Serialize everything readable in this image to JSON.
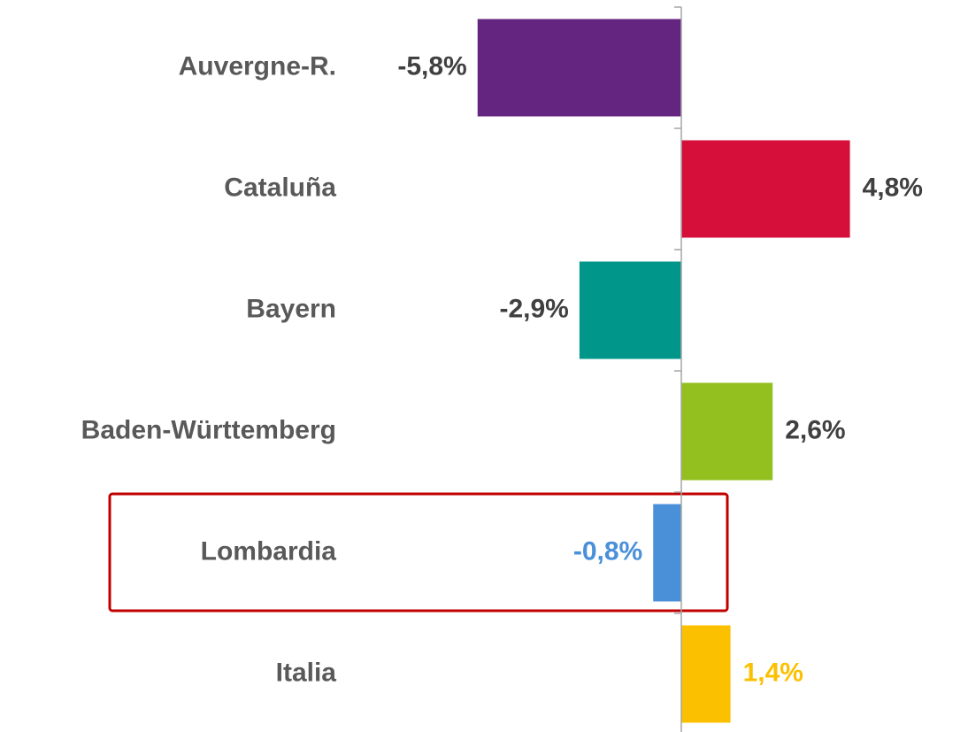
{
  "chart_data": {
    "type": "barh",
    "categories": [
      "Auvergne-R.",
      "Cataluña",
      "Bayern",
      "Baden-Württemberg",
      "Lombardia",
      "Italia"
    ],
    "values": [
      -5.8,
      4.8,
      -2.9,
      2.6,
      -0.8,
      1.4
    ],
    "value_labels": [
      "-5,8%",
      "4,8%",
      "-2,9%",
      "2,6%",
      "-0,8%",
      "1,4%"
    ],
    "colors": [
      "#642580",
      "#d50f3a",
      "#00968a",
      "#93c01f",
      "#4a90d9",
      "#fbc000"
    ],
    "label_colors": [
      "#404040",
      "#404040",
      "#404040",
      "#404040",
      "#4a90d9",
      "#fbc000"
    ]
  }
}
